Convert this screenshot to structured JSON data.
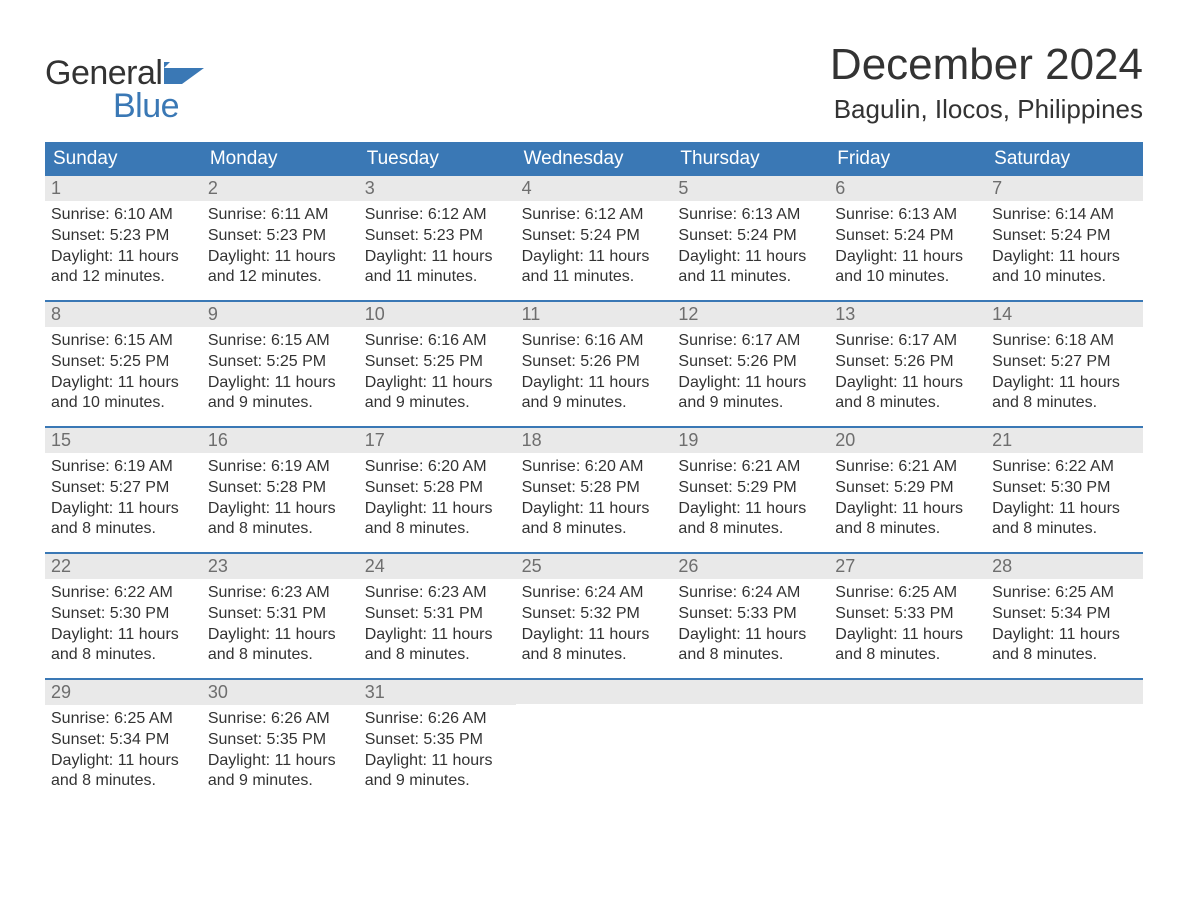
{
  "logo": {
    "word1": "General",
    "word2": "Blue",
    "word1_color": "#333333",
    "word2_color": "#3a78b5"
  },
  "title": "December 2024",
  "location": "Bagulin, Ilocos, Philippines",
  "day_names": [
    "Sunday",
    "Monday",
    "Tuesday",
    "Wednesday",
    "Thursday",
    "Friday",
    "Saturday"
  ],
  "colors": {
    "header_bg": "#3a78b5",
    "header_text": "#ffffff",
    "daynum_bg": "#e9e9e9",
    "daynum_text": "#6e6e6e",
    "body_text": "#333333",
    "week_border": "#3a78b5"
  },
  "weeks": [
    [
      {
        "n": "1",
        "sr": "Sunrise: 6:10 AM",
        "ss": "Sunset: 5:23 PM",
        "d1": "Daylight: 11 hours",
        "d2": "and 12 minutes."
      },
      {
        "n": "2",
        "sr": "Sunrise: 6:11 AM",
        "ss": "Sunset: 5:23 PM",
        "d1": "Daylight: 11 hours",
        "d2": "and 12 minutes."
      },
      {
        "n": "3",
        "sr": "Sunrise: 6:12 AM",
        "ss": "Sunset: 5:23 PM",
        "d1": "Daylight: 11 hours",
        "d2": "and 11 minutes."
      },
      {
        "n": "4",
        "sr": "Sunrise: 6:12 AM",
        "ss": "Sunset: 5:24 PM",
        "d1": "Daylight: 11 hours",
        "d2": "and 11 minutes."
      },
      {
        "n": "5",
        "sr": "Sunrise: 6:13 AM",
        "ss": "Sunset: 5:24 PM",
        "d1": "Daylight: 11 hours",
        "d2": "and 11 minutes."
      },
      {
        "n": "6",
        "sr": "Sunrise: 6:13 AM",
        "ss": "Sunset: 5:24 PM",
        "d1": "Daylight: 11 hours",
        "d2": "and 10 minutes."
      },
      {
        "n": "7",
        "sr": "Sunrise: 6:14 AM",
        "ss": "Sunset: 5:24 PM",
        "d1": "Daylight: 11 hours",
        "d2": "and 10 minutes."
      }
    ],
    [
      {
        "n": "8",
        "sr": "Sunrise: 6:15 AM",
        "ss": "Sunset: 5:25 PM",
        "d1": "Daylight: 11 hours",
        "d2": "and 10 minutes."
      },
      {
        "n": "9",
        "sr": "Sunrise: 6:15 AM",
        "ss": "Sunset: 5:25 PM",
        "d1": "Daylight: 11 hours",
        "d2": "and 9 minutes."
      },
      {
        "n": "10",
        "sr": "Sunrise: 6:16 AM",
        "ss": "Sunset: 5:25 PM",
        "d1": "Daylight: 11 hours",
        "d2": "and 9 minutes."
      },
      {
        "n": "11",
        "sr": "Sunrise: 6:16 AM",
        "ss": "Sunset: 5:26 PM",
        "d1": "Daylight: 11 hours",
        "d2": "and 9 minutes."
      },
      {
        "n": "12",
        "sr": "Sunrise: 6:17 AM",
        "ss": "Sunset: 5:26 PM",
        "d1": "Daylight: 11 hours",
        "d2": "and 9 minutes."
      },
      {
        "n": "13",
        "sr": "Sunrise: 6:17 AM",
        "ss": "Sunset: 5:26 PM",
        "d1": "Daylight: 11 hours",
        "d2": "and 8 minutes."
      },
      {
        "n": "14",
        "sr": "Sunrise: 6:18 AM",
        "ss": "Sunset: 5:27 PM",
        "d1": "Daylight: 11 hours",
        "d2": "and 8 minutes."
      }
    ],
    [
      {
        "n": "15",
        "sr": "Sunrise: 6:19 AM",
        "ss": "Sunset: 5:27 PM",
        "d1": "Daylight: 11 hours",
        "d2": "and 8 minutes."
      },
      {
        "n": "16",
        "sr": "Sunrise: 6:19 AM",
        "ss": "Sunset: 5:28 PM",
        "d1": "Daylight: 11 hours",
        "d2": "and 8 minutes."
      },
      {
        "n": "17",
        "sr": "Sunrise: 6:20 AM",
        "ss": "Sunset: 5:28 PM",
        "d1": "Daylight: 11 hours",
        "d2": "and 8 minutes."
      },
      {
        "n": "18",
        "sr": "Sunrise: 6:20 AM",
        "ss": "Sunset: 5:28 PM",
        "d1": "Daylight: 11 hours",
        "d2": "and 8 minutes."
      },
      {
        "n": "19",
        "sr": "Sunrise: 6:21 AM",
        "ss": "Sunset: 5:29 PM",
        "d1": "Daylight: 11 hours",
        "d2": "and 8 minutes."
      },
      {
        "n": "20",
        "sr": "Sunrise: 6:21 AM",
        "ss": "Sunset: 5:29 PM",
        "d1": "Daylight: 11 hours",
        "d2": "and 8 minutes."
      },
      {
        "n": "21",
        "sr": "Sunrise: 6:22 AM",
        "ss": "Sunset: 5:30 PM",
        "d1": "Daylight: 11 hours",
        "d2": "and 8 minutes."
      }
    ],
    [
      {
        "n": "22",
        "sr": "Sunrise: 6:22 AM",
        "ss": "Sunset: 5:30 PM",
        "d1": "Daylight: 11 hours",
        "d2": "and 8 minutes."
      },
      {
        "n": "23",
        "sr": "Sunrise: 6:23 AM",
        "ss": "Sunset: 5:31 PM",
        "d1": "Daylight: 11 hours",
        "d2": "and 8 minutes."
      },
      {
        "n": "24",
        "sr": "Sunrise: 6:23 AM",
        "ss": "Sunset: 5:31 PM",
        "d1": "Daylight: 11 hours",
        "d2": "and 8 minutes."
      },
      {
        "n": "25",
        "sr": "Sunrise: 6:24 AM",
        "ss": "Sunset: 5:32 PM",
        "d1": "Daylight: 11 hours",
        "d2": "and 8 minutes."
      },
      {
        "n": "26",
        "sr": "Sunrise: 6:24 AM",
        "ss": "Sunset: 5:33 PM",
        "d1": "Daylight: 11 hours",
        "d2": "and 8 minutes."
      },
      {
        "n": "27",
        "sr": "Sunrise: 6:25 AM",
        "ss": "Sunset: 5:33 PM",
        "d1": "Daylight: 11 hours",
        "d2": "and 8 minutes."
      },
      {
        "n": "28",
        "sr": "Sunrise: 6:25 AM",
        "ss": "Sunset: 5:34 PM",
        "d1": "Daylight: 11 hours",
        "d2": "and 8 minutes."
      }
    ],
    [
      {
        "n": "29",
        "sr": "Sunrise: 6:25 AM",
        "ss": "Sunset: 5:34 PM",
        "d1": "Daylight: 11 hours",
        "d2": "and 8 minutes."
      },
      {
        "n": "30",
        "sr": "Sunrise: 6:26 AM",
        "ss": "Sunset: 5:35 PM",
        "d1": "Daylight: 11 hours",
        "d2": "and 9 minutes."
      },
      {
        "n": "31",
        "sr": "Sunrise: 6:26 AM",
        "ss": "Sunset: 5:35 PM",
        "d1": "Daylight: 11 hours",
        "d2": "and 9 minutes."
      },
      null,
      null,
      null,
      null
    ]
  ]
}
